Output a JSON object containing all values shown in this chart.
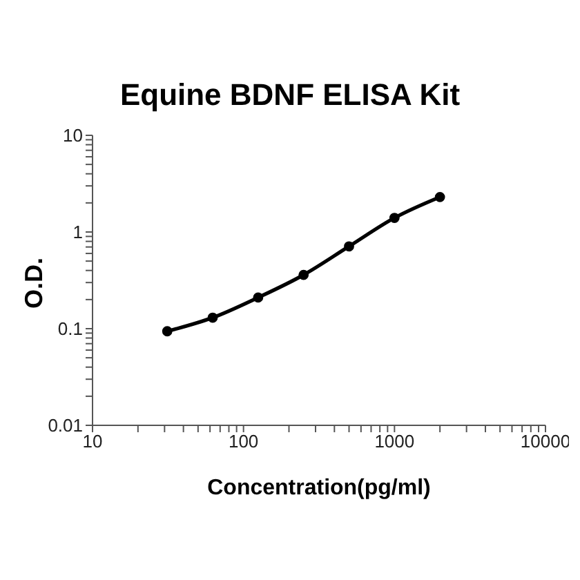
{
  "chart_data": {
    "type": "line",
    "title": "Equine BDNF ELISA Kit",
    "xlabel": "Concentration(pg/ml)",
    "ylabel": "O.D.",
    "x": [
      31.25,
      62.5,
      125,
      250,
      500,
      1000,
      2000
    ],
    "series": [
      {
        "color": "#000000",
        "values": [
          0.094,
          0.13,
          0.21,
          0.36,
          0.71,
          1.4,
          2.3
        ]
      }
    ],
    "log": "xy",
    "xlim": [
      10,
      10000
    ],
    "ylim": [
      0.01,
      10
    ],
    "xticks": [
      10,
      {
        "value": 20,
        "label": null
      },
      {
        "value": 30,
        "label": null
      },
      {
        "value": 40,
        "label": null
      },
      {
        "value": 50,
        "label": null
      },
      {
        "value": 60,
        "label": null
      },
      {
        "value": 70,
        "label": null
      },
      {
        "value": 80,
        "label": null
      },
      {
        "value": 90,
        "label": null
      },
      100,
      {
        "value": 200,
        "label": null
      },
      {
        "value": 300,
        "label": null
      },
      {
        "value": 400,
        "label": null
      },
      {
        "value": 500,
        "label": null
      },
      {
        "value": 600,
        "label": null
      },
      {
        "value": 700,
        "label": null
      },
      {
        "value": 800,
        "label": null
      },
      {
        "value": 900,
        "label": null
      },
      1000,
      {
        "value": 2000,
        "label": null
      },
      {
        "value": 3000,
        "label": null
      },
      {
        "value": 4000,
        "label": null
      },
      {
        "value": 5000,
        "label": null
      },
      {
        "value": 6000,
        "label": null
      },
      {
        "value": 7000,
        "label": null
      },
      {
        "value": 8000,
        "label": null
      },
      {
        "value": 9000,
        "label": null
      },
      10000
    ],
    "yticks": [
      0.01,
      {
        "value": 0.02,
        "label": null
      },
      {
        "value": 0.03,
        "label": null
      },
      {
        "value": 0.04,
        "label": null
      },
      {
        "value": 0.05,
        "label": null
      },
      {
        "value": 0.06,
        "label": null
      },
      {
        "value": 0.07,
        "label": null
      },
      {
        "value": 0.08,
        "label": null
      },
      {
        "value": 0.09,
        "label": null
      },
      0.1,
      {
        "value": 0.2,
        "label": null
      },
      {
        "value": 0.3,
        "label": null
      },
      {
        "value": 0.4,
        "label": null
      },
      {
        "value": 0.5,
        "label": null
      },
      {
        "value": 0.6,
        "label": null
      },
      {
        "value": 0.7,
        "label": null
      },
      {
        "value": 0.8,
        "label": null
      },
      {
        "value": 0.9,
        "label": null
      },
      1,
      {
        "value": 2,
        "label": null
      },
      {
        "value": 3,
        "label": null
      },
      {
        "value": 4,
        "label": null
      },
      {
        "value": 5,
        "label": null
      },
      {
        "value": 6,
        "label": null
      },
      {
        "value": 7,
        "label": null
      },
      {
        "value": 8,
        "label": null
      },
      {
        "value": 9,
        "label": null
      },
      10
    ],
    "marker": "circle",
    "line_style": "solid"
  }
}
